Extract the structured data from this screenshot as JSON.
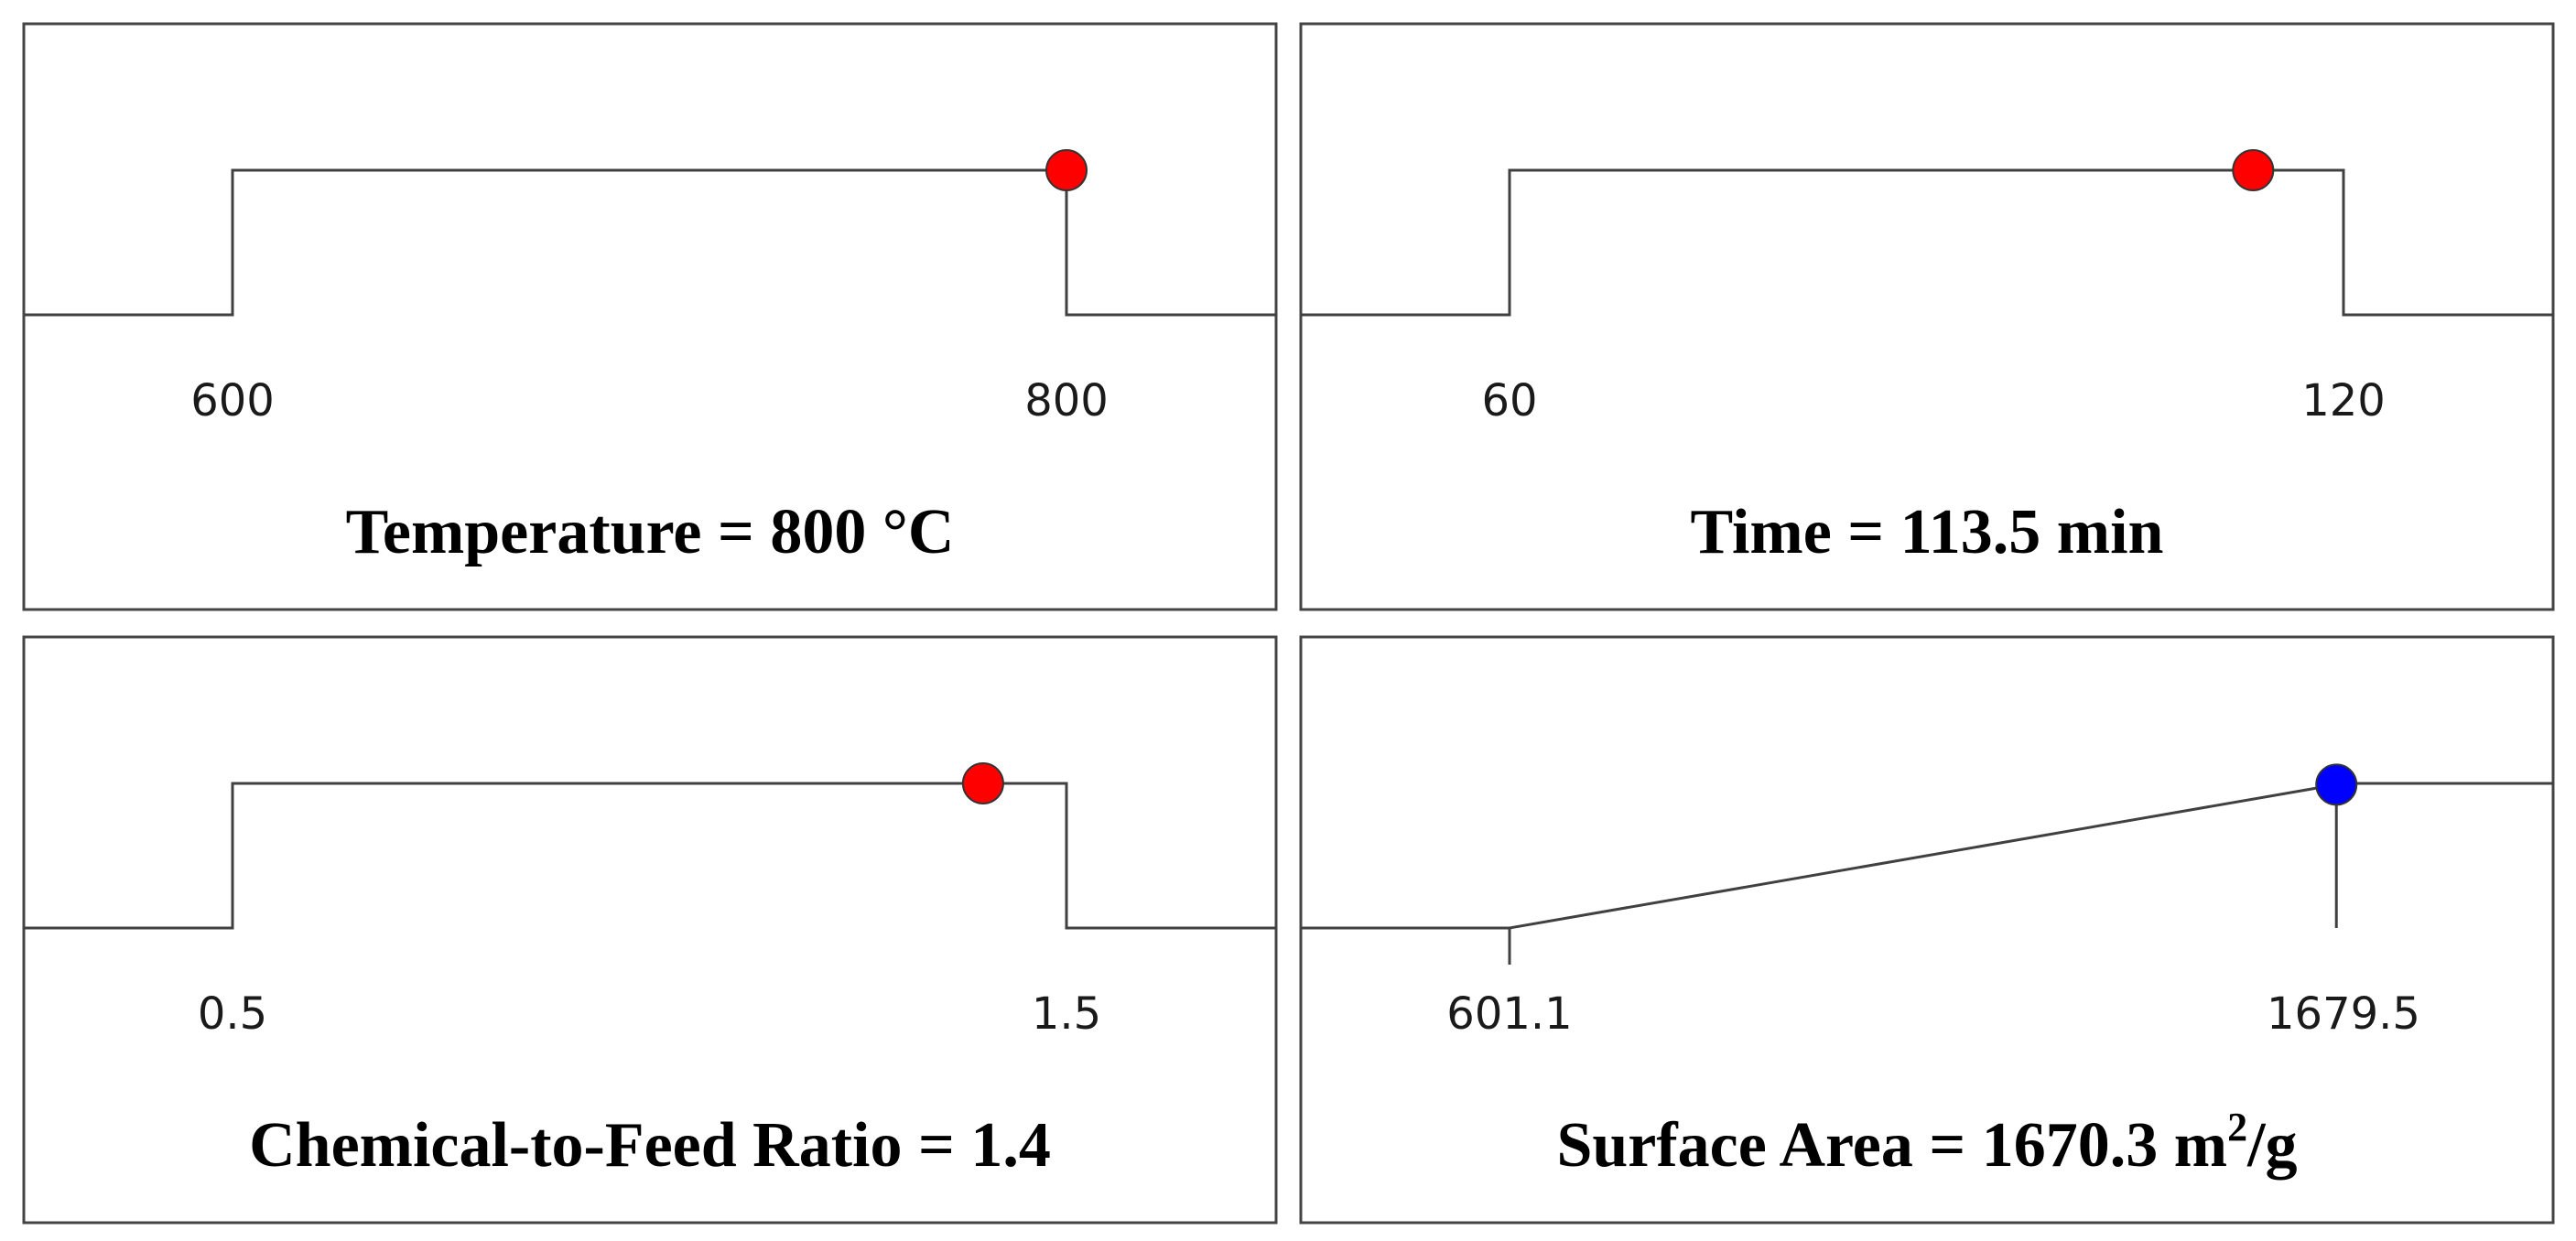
{
  "chart_data": [
    {
      "type": "line",
      "title": "Temperature = 800 °C",
      "title_prefix": "Temperature = 800 °C",
      "title_sup": "",
      "title_suffix": "",
      "shape": "step",
      "low_label": "600",
      "high_label": "800",
      "range": [
        600,
        800
      ],
      "point": 800,
      "point_color": "#ff0000"
    },
    {
      "type": "line",
      "title": "Time = 113.5 min",
      "title_prefix": "Time = 113.5 min",
      "title_sup": "",
      "title_suffix": "",
      "shape": "step",
      "low_label": "60",
      "high_label": "120",
      "range": [
        60,
        120
      ],
      "point": 113.5,
      "point_color": "#ff0000"
    },
    {
      "type": "line",
      "title": "Chemical-to-Feed Ratio = 1.4",
      "title_prefix": "Chemical-to-Feed Ratio = 1.4",
      "title_sup": "",
      "title_suffix": "",
      "shape": "step",
      "low_label": "0.5",
      "high_label": "1.5",
      "range": [
        0.5,
        1.5
      ],
      "point": 1.4,
      "point_color": "#ff0000"
    },
    {
      "type": "line",
      "title": "Surface Area = 1670.3 m2/g",
      "title_prefix": "Surface Area = 1670.3 m",
      "title_sup": "2",
      "title_suffix": "/g",
      "shape": "ramp",
      "low_label": "601.1",
      "high_label": "1679.5",
      "range": [
        601.1,
        1679.5
      ],
      "point": 1670.3,
      "point_color": "#0000ff"
    }
  ]
}
